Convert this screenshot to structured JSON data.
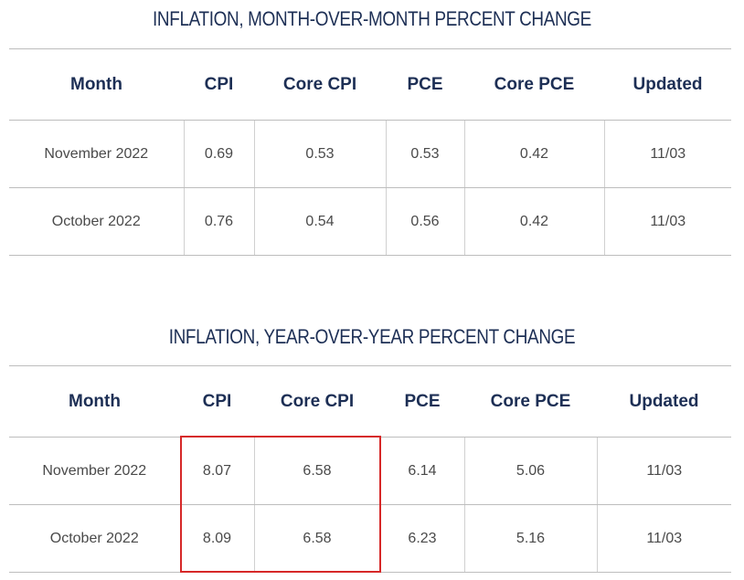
{
  "chart_data": [
    {
      "type": "table",
      "title": "INFLATION, MONTH-OVER-MONTH PERCENT CHANGE",
      "columns": [
        "Month",
        "CPI",
        "Core CPI",
        "PCE",
        "Core PCE",
        "Updated"
      ],
      "rows": [
        [
          "November 2022",
          "0.69",
          "0.53",
          "0.53",
          "0.42",
          "11/03"
        ],
        [
          "October 2022",
          "0.76",
          "0.54",
          "0.56",
          "0.42",
          "11/03"
        ]
      ]
    },
    {
      "type": "table",
      "title": "INFLATION, YEAR-OVER-YEAR PERCENT CHANGE",
      "columns": [
        "Month",
        "CPI",
        "Core CPI",
        "PCE",
        "Core PCE",
        "Updated"
      ],
      "rows": [
        [
          "November 2022",
          "8.07",
          "6.58",
          "6.14",
          "5.06",
          "11/03"
        ],
        [
          "October 2022",
          "8.09",
          "6.58",
          "6.23",
          "5.16",
          "11/03"
        ]
      ],
      "highlight": {
        "columns": [
          "CPI",
          "Core CPI"
        ],
        "color": "#d62828"
      }
    }
  ],
  "colors": {
    "heading": "#1d2f55",
    "cell_text": "#4a4a4a",
    "rule": "#bdbdbd"
  }
}
